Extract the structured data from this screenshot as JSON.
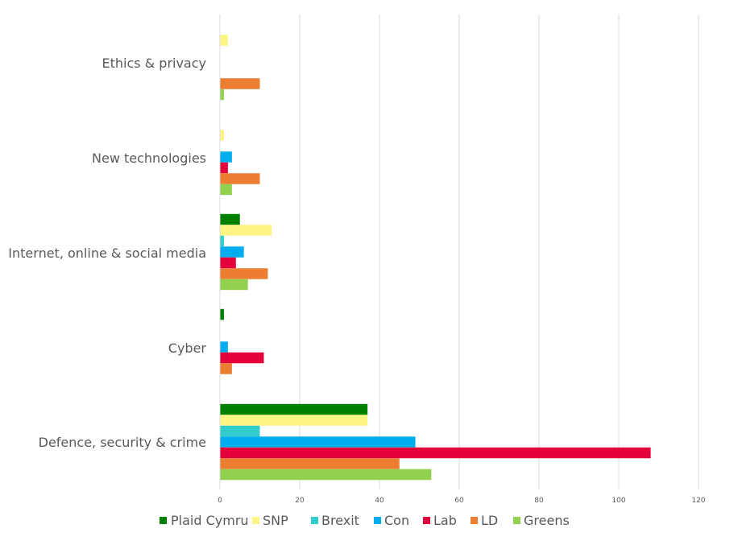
{
  "chart_data": {
    "type": "bar",
    "orientation": "horizontal",
    "title": "",
    "xlabel": "",
    "ylabel": "",
    "xlim": [
      0,
      120
    ],
    "x_ticks": [
      "0",
      "20",
      "40",
      "60",
      "80",
      "100",
      "120"
    ],
    "x_tick_values": [
      0,
      20,
      40,
      60,
      80,
      100,
      120
    ],
    "grid": true,
    "legend_position": "bottom",
    "categories": [
      "Ethics & privacy",
      "New technologies",
      "Internet, online & social media",
      "Cyber",
      "Defence, security & crime"
    ],
    "series": [
      {
        "name": "Plaid Cymru",
        "color": "#008000",
        "values": [
          0,
          0,
          5,
          1,
          37
        ]
      },
      {
        "name": "SNP",
        "color": "#FFF584",
        "values": [
          2,
          1,
          13,
          0,
          37
        ]
      },
      {
        "name": "Brexit",
        "color": "#33CCCC",
        "values": [
          0,
          0,
          1,
          0,
          10
        ]
      },
      {
        "name": "Con",
        "color": "#00AEEF",
        "values": [
          0,
          3,
          6,
          2,
          49
        ]
      },
      {
        "name": "Lab",
        "color": "#E4003B",
        "values": [
          0,
          2,
          4,
          11,
          108
        ]
      },
      {
        "name": "LD",
        "color": "#ED7D31",
        "values": [
          10,
          10,
          12,
          3,
          45
        ]
      },
      {
        "name": "Greens",
        "color": "#92D050",
        "values": [
          1,
          3,
          7,
          0,
          53
        ]
      }
    ]
  }
}
